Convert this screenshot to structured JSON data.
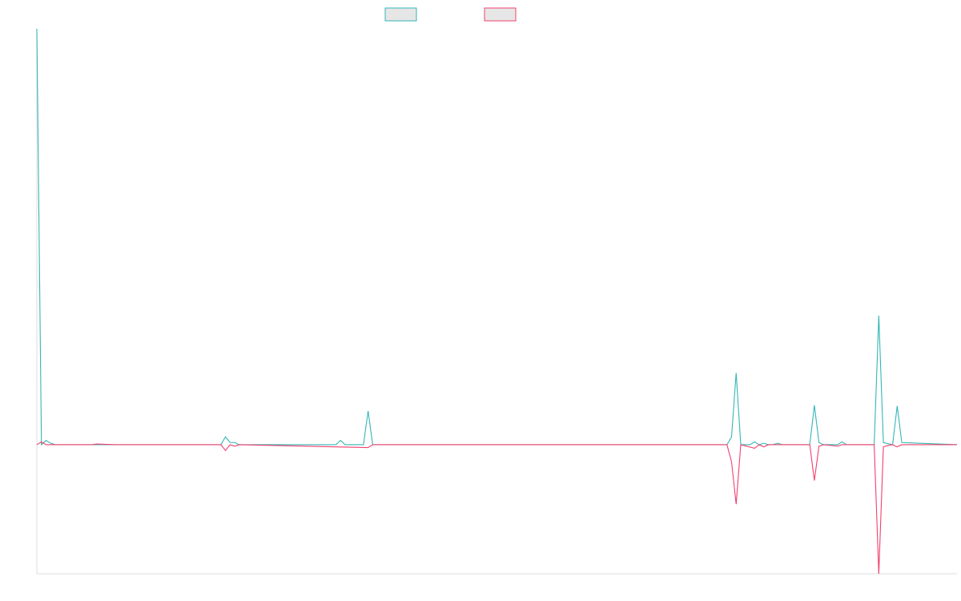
{
  "colors": {
    "series_a": "#36b5b5",
    "series_b": "#f0406e",
    "legend_fill": "#e6e6e6",
    "axis": "#dddddd",
    "background": "#ffffff"
  },
  "chart_data": {
    "type": "line",
    "title": "",
    "xlabel": "",
    "ylabel": "",
    "grid": false,
    "legend_position": "top-center",
    "x_range": [
      0,
      200
    ],
    "ylim": [
      -18,
      58
    ],
    "series": [
      {
        "color": "#36b5b5",
        "points": [
          [
            0,
            58
          ],
          [
            1,
            0
          ],
          [
            2,
            0.6
          ],
          [
            3,
            0.2
          ],
          [
            4,
            0
          ],
          [
            12,
            0
          ],
          [
            17,
            0
          ],
          [
            40,
            0
          ],
          [
            41,
            1.1
          ],
          [
            42,
            0.3
          ],
          [
            43,
            0.3
          ],
          [
            44,
            0
          ],
          [
            65,
            0
          ],
          [
            66,
            0.6
          ],
          [
            67,
            0
          ],
          [
            71,
            0
          ],
          [
            72,
            4.7
          ],
          [
            73,
            0
          ],
          [
            150,
            0
          ],
          [
            151,
            1.1
          ],
          [
            152,
            10
          ],
          [
            153,
            0
          ],
          [
            155,
            0
          ],
          [
            156,
            0.4
          ],
          [
            157,
            0
          ],
          [
            158,
            0.2
          ],
          [
            159,
            0
          ],
          [
            160,
            0
          ],
          [
            161,
            0.2
          ],
          [
            162,
            0
          ],
          [
            168,
            0
          ],
          [
            169,
            5.5
          ],
          [
            170,
            0.3
          ],
          [
            171,
            0
          ],
          [
            174,
            0
          ],
          [
            175,
            0.4
          ],
          [
            176,
            0
          ],
          [
            182,
            0
          ],
          [
            183,
            18
          ],
          [
            184,
            0.3
          ],
          [
            186,
            0
          ],
          [
            187,
            5.4
          ],
          [
            188,
            0.3
          ],
          [
            200,
            0
          ]
        ]
      },
      {
        "color": "#f0406e",
        "points": [
          [
            0,
            0
          ],
          [
            1,
            0.4
          ],
          [
            2,
            0
          ],
          [
            12,
            0
          ],
          [
            13,
            0.1
          ],
          [
            17,
            0
          ],
          [
            40,
            0
          ],
          [
            41,
            -0.8
          ],
          [
            42,
            0
          ],
          [
            43,
            -0.2
          ],
          [
            44,
            0
          ],
          [
            72,
            -0.4
          ],
          [
            73,
            0
          ],
          [
            150,
            0
          ],
          [
            151,
            -2.4
          ],
          [
            152,
            -8.3
          ],
          [
            153,
            0
          ],
          [
            156,
            -0.5
          ],
          [
            157,
            0
          ],
          [
            158,
            -0.3
          ],
          [
            159,
            0
          ],
          [
            168,
            0
          ],
          [
            169,
            -5
          ],
          [
            170,
            -0.2
          ],
          [
            171,
            0
          ],
          [
            174,
            -0.2
          ],
          [
            175,
            0
          ],
          [
            182,
            0
          ],
          [
            183,
            -18
          ],
          [
            184,
            -0.3
          ],
          [
            185,
            -0.1
          ],
          [
            186,
            0
          ],
          [
            187,
            -0.3
          ],
          [
            188,
            0
          ],
          [
            200,
            0
          ]
        ]
      }
    ]
  }
}
